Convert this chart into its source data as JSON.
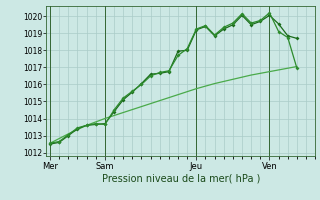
{
  "xlabel": "Pression niveau de la mer( hPa )",
  "bg_color": "#cce8e4",
  "grid_color": "#aaccc8",
  "line_color1": "#1a6b1a",
  "line_color2": "#2d8b2d",
  "line_color3": "#4aaa4a",
  "ylim": [
    1011.8,
    1020.6
  ],
  "yticks": [
    1012,
    1013,
    1014,
    1015,
    1016,
    1017,
    1018,
    1019,
    1020
  ],
  "day_labels": [
    "Mer",
    "Sam",
    "Jeu",
    "Ven"
  ],
  "day_positions": [
    0,
    3,
    8,
    12
  ],
  "xlim": [
    -0.2,
    14.5
  ],
  "line1_x": [
    0,
    0.5,
    1,
    1.5,
    2,
    2.5,
    3,
    3.5,
    4,
    4.5,
    5,
    5.5,
    6,
    6.5,
    7,
    7.5,
    8,
    8.5,
    9,
    9.5,
    10,
    10.5,
    11,
    11.5,
    12,
    12.5,
    13,
    13.5
  ],
  "line1_y": [
    1012.5,
    1012.6,
    1013.0,
    1013.4,
    1013.6,
    1013.65,
    1013.7,
    1014.4,
    1015.1,
    1015.55,
    1016.05,
    1016.6,
    1016.65,
    1016.75,
    1017.95,
    1018.0,
    1019.2,
    1019.4,
    1018.85,
    1019.25,
    1019.5,
    1020.05,
    1019.5,
    1019.7,
    1020.05,
    1019.55,
    1018.85,
    1018.7
  ],
  "line2_x": [
    0,
    0.5,
    1,
    1.5,
    2,
    2.5,
    3,
    3.5,
    4,
    4.5,
    5,
    5.5,
    6,
    6.5,
    7,
    7.5,
    8,
    8.5,
    9,
    9.5,
    10,
    10.5,
    11,
    11.5,
    12,
    12.5,
    13,
    13.5
  ],
  "line2_y": [
    1012.55,
    1012.65,
    1013.05,
    1013.45,
    1013.6,
    1013.7,
    1013.65,
    1014.5,
    1015.2,
    1015.6,
    1016.0,
    1016.5,
    1016.7,
    1016.8,
    1017.7,
    1018.1,
    1019.25,
    1019.45,
    1018.9,
    1019.35,
    1019.6,
    1020.15,
    1019.6,
    1019.75,
    1020.2,
    1019.1,
    1018.75,
    1016.95
  ],
  "line3_x": [
    0,
    1,
    2,
    3,
    4,
    5,
    6,
    7,
    8,
    9,
    10,
    11,
    12,
    13,
    13.5
  ],
  "line3_y": [
    1012.55,
    1013.1,
    1013.6,
    1014.0,
    1014.35,
    1014.7,
    1015.05,
    1015.4,
    1015.75,
    1016.05,
    1016.3,
    1016.55,
    1016.75,
    1016.95,
    1017.05
  ]
}
